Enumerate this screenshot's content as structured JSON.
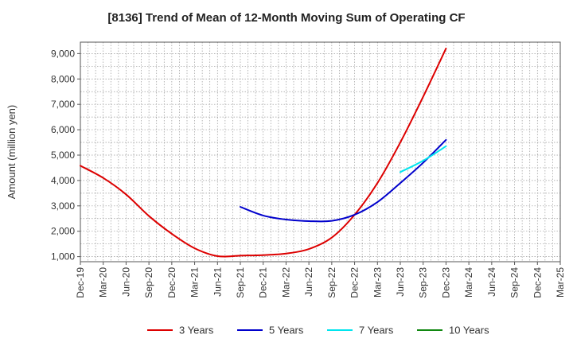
{
  "chart_data": {
    "type": "line",
    "title": "[8136]  Trend of Mean of 12-Month Moving Sum of Operating CF",
    "xlabel": "",
    "ylabel": "Amount (million yen)",
    "ylim": [
      800,
      9450
    ],
    "yticks": [
      1000,
      2000,
      3000,
      4000,
      5000,
      6000,
      7000,
      8000,
      9000
    ],
    "ytick_labels": [
      "1,000",
      "2,000",
      "3,000",
      "4,000",
      "5,000",
      "6,000",
      "7,000",
      "8,000",
      "9,000"
    ],
    "categories": [
      "Dec-19",
      "Mar-20",
      "Jun-20",
      "Sep-20",
      "Dec-20",
      "Mar-21",
      "Jun-21",
      "Sep-21",
      "Dec-21",
      "Mar-22",
      "Jun-22",
      "Sep-22",
      "Dec-22",
      "Mar-23",
      "Jun-23",
      "Sep-23",
      "Dec-23",
      "Mar-24",
      "Jun-24",
      "Sep-24",
      "Dec-24",
      "Mar-25"
    ],
    "grid": true,
    "legend_position": "bottom",
    "series": [
      {
        "name": "3 Years",
        "color": "#dd0000",
        "values": [
          4580,
          4100,
          3450,
          2600,
          1900,
          1330,
          1020,
          1040,
          1060,
          1120,
          1300,
          1750,
          2650,
          3900,
          5500,
          7300,
          9200,
          null,
          null,
          null,
          null,
          null
        ]
      },
      {
        "name": "5 Years",
        "color": "#0000cc",
        "values": [
          null,
          null,
          null,
          null,
          null,
          null,
          null,
          2960,
          2620,
          2460,
          2400,
          2410,
          2650,
          3150,
          3900,
          4700,
          5600,
          null,
          null,
          null,
          null,
          null
        ]
      },
      {
        "name": "7 Years",
        "color": "#00e5ee",
        "values": [
          null,
          null,
          null,
          null,
          null,
          null,
          null,
          null,
          null,
          null,
          null,
          null,
          null,
          null,
          4330,
          4780,
          5350,
          null,
          null,
          null,
          null,
          null
        ]
      },
      {
        "name": "10 Years",
        "color": "#118811",
        "values": [
          null,
          null,
          null,
          null,
          null,
          null,
          null,
          null,
          null,
          null,
          null,
          null,
          null,
          null,
          null,
          null,
          null,
          null,
          null,
          null,
          null,
          null
        ]
      }
    ]
  }
}
